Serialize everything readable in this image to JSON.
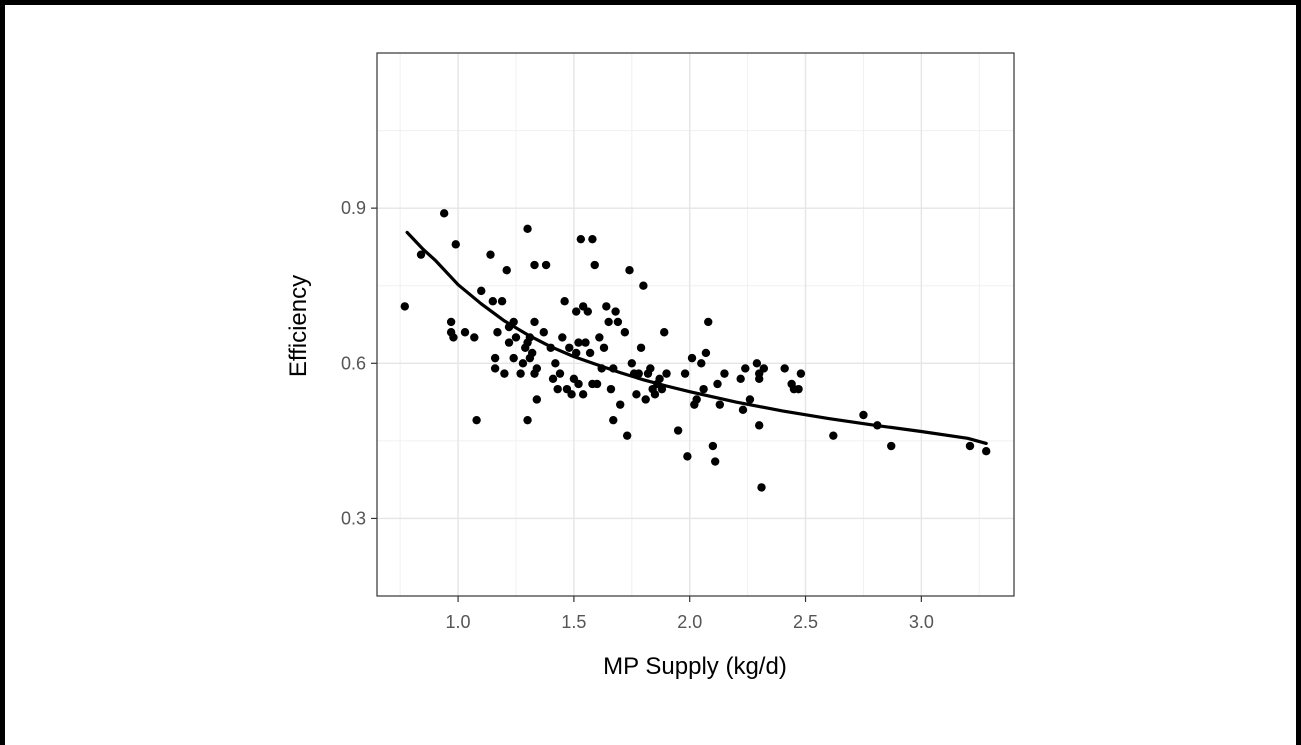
{
  "chart_data": {
    "type": "scatter",
    "xlabel": "MP Supply (kg/d)",
    "ylabel": "Efficiency",
    "xlim": [
      0.65,
      3.4
    ],
    "ylim": [
      0.15,
      1.2
    ],
    "xticks": [
      1.0,
      1.5,
      2.0,
      2.5,
      3.0
    ],
    "xtick_labels": [
      "1.0",
      "1.5",
      "2.0",
      "2.5",
      "3.0"
    ],
    "yticks": [
      0.3,
      0.6,
      0.9
    ],
    "ytick_labels": [
      "0.3",
      "0.6",
      "0.9"
    ],
    "grid": true,
    "legend": "none",
    "point_color": "#000000",
    "line_color": "#000000",
    "series": [
      {
        "kind": "points",
        "values": [
          [
            0.77,
            0.71
          ],
          [
            0.84,
            0.81
          ],
          [
            0.94,
            0.89
          ],
          [
            0.97,
            0.66
          ],
          [
            0.97,
            0.68
          ],
          [
            0.98,
            0.65
          ],
          [
            0.99,
            0.83
          ],
          [
            1.03,
            0.66
          ],
          [
            1.07,
            0.65
          ],
          [
            1.08,
            0.49
          ],
          [
            1.1,
            0.74
          ],
          [
            1.14,
            0.81
          ],
          [
            1.15,
            0.72
          ],
          [
            1.16,
            0.61
          ],
          [
            1.16,
            0.59
          ],
          [
            1.17,
            0.66
          ],
          [
            1.19,
            0.72
          ],
          [
            1.2,
            0.58
          ],
          [
            1.21,
            0.78
          ],
          [
            1.22,
            0.64
          ],
          [
            1.22,
            0.67
          ],
          [
            1.24,
            0.61
          ],
          [
            1.24,
            0.68
          ],
          [
            1.25,
            0.65
          ],
          [
            1.27,
            0.58
          ],
          [
            1.28,
            0.6
          ],
          [
            1.29,
            0.63
          ],
          [
            1.3,
            0.64
          ],
          [
            1.3,
            0.49
          ],
          [
            1.3,
            0.86
          ],
          [
            1.31,
            0.61
          ],
          [
            1.31,
            0.65
          ],
          [
            1.32,
            0.62
          ],
          [
            1.33,
            0.79
          ],
          [
            1.33,
            0.68
          ],
          [
            1.33,
            0.58
          ],
          [
            1.34,
            0.53
          ],
          [
            1.34,
            0.59
          ],
          [
            1.37,
            0.66
          ],
          [
            1.38,
            0.79
          ],
          [
            1.4,
            0.63
          ],
          [
            1.41,
            0.57
          ],
          [
            1.42,
            0.6
          ],
          [
            1.43,
            0.55
          ],
          [
            1.44,
            0.58
          ],
          [
            1.45,
            0.65
          ],
          [
            1.46,
            0.72
          ],
          [
            1.47,
            0.55
          ],
          [
            1.48,
            0.63
          ],
          [
            1.49,
            0.54
          ],
          [
            1.5,
            0.57
          ],
          [
            1.51,
            0.7
          ],
          [
            1.51,
            0.62
          ],
          [
            1.52,
            0.64
          ],
          [
            1.52,
            0.56
          ],
          [
            1.53,
            0.84
          ],
          [
            1.54,
            0.71
          ],
          [
            1.54,
            0.54
          ],
          [
            1.55,
            0.64
          ],
          [
            1.56,
            0.7
          ],
          [
            1.57,
            0.62
          ],
          [
            1.58,
            0.84
          ],
          [
            1.58,
            0.56
          ],
          [
            1.59,
            0.79
          ],
          [
            1.6,
            0.56
          ],
          [
            1.61,
            0.65
          ],
          [
            1.62,
            0.59
          ],
          [
            1.63,
            0.63
          ],
          [
            1.64,
            0.71
          ],
          [
            1.65,
            0.68
          ],
          [
            1.66,
            0.55
          ],
          [
            1.67,
            0.59
          ],
          [
            1.67,
            0.49
          ],
          [
            1.68,
            0.7
          ],
          [
            1.69,
            0.68
          ],
          [
            1.7,
            0.52
          ],
          [
            1.72,
            0.66
          ],
          [
            1.73,
            0.46
          ],
          [
            1.74,
            0.78
          ],
          [
            1.75,
            0.6
          ],
          [
            1.76,
            0.58
          ],
          [
            1.77,
            0.54
          ],
          [
            1.78,
            0.58
          ],
          [
            1.79,
            0.63
          ],
          [
            1.8,
            0.75
          ],
          [
            1.81,
            0.53
          ],
          [
            1.82,
            0.58
          ],
          [
            1.83,
            0.59
          ],
          [
            1.84,
            0.55
          ],
          [
            1.85,
            0.54
          ],
          [
            1.86,
            0.56
          ],
          [
            1.87,
            0.57
          ],
          [
            1.88,
            0.55
          ],
          [
            1.89,
            0.66
          ],
          [
            1.9,
            0.58
          ],
          [
            1.95,
            0.47
          ],
          [
            1.98,
            0.58
          ],
          [
            1.99,
            0.42
          ],
          [
            2.01,
            0.61
          ],
          [
            2.02,
            0.52
          ],
          [
            2.03,
            0.53
          ],
          [
            2.05,
            0.6
          ],
          [
            2.06,
            0.55
          ],
          [
            2.07,
            0.62
          ],
          [
            2.08,
            0.68
          ],
          [
            2.1,
            0.44
          ],
          [
            2.11,
            0.41
          ],
          [
            2.12,
            0.56
          ],
          [
            2.13,
            0.52
          ],
          [
            2.15,
            0.58
          ],
          [
            2.22,
            0.57
          ],
          [
            2.23,
            0.51
          ],
          [
            2.24,
            0.59
          ],
          [
            2.26,
            0.53
          ],
          [
            2.29,
            0.6
          ],
          [
            2.3,
            0.57
          ],
          [
            2.3,
            0.58
          ],
          [
            2.3,
            0.48
          ],
          [
            2.31,
            0.36
          ],
          [
            2.32,
            0.59
          ],
          [
            2.41,
            0.59
          ],
          [
            2.44,
            0.56
          ],
          [
            2.45,
            0.55
          ],
          [
            2.47,
            0.55
          ],
          [
            2.48,
            0.58
          ],
          [
            2.62,
            0.46
          ],
          [
            2.75,
            0.5
          ],
          [
            2.81,
            0.48
          ],
          [
            2.87,
            0.44
          ],
          [
            3.21,
            0.44
          ],
          [
            3.28,
            0.43
          ]
        ]
      },
      {
        "kind": "fit-line",
        "x": [
          0.78,
          0.85,
          0.9,
          1.0,
          1.1,
          1.2,
          1.3,
          1.4,
          1.5,
          1.6,
          1.7,
          1.8,
          1.9,
          2.0,
          2.2,
          2.4,
          2.6,
          2.8,
          3.0,
          3.2,
          3.28
        ],
        "y": [
          0.853,
          0.82,
          0.8,
          0.752,
          0.715,
          0.682,
          0.655,
          0.632,
          0.613,
          0.597,
          0.582,
          0.568,
          0.556,
          0.545,
          0.525,
          0.508,
          0.493,
          0.48,
          0.468,
          0.455,
          0.445
        ]
      }
    ]
  }
}
